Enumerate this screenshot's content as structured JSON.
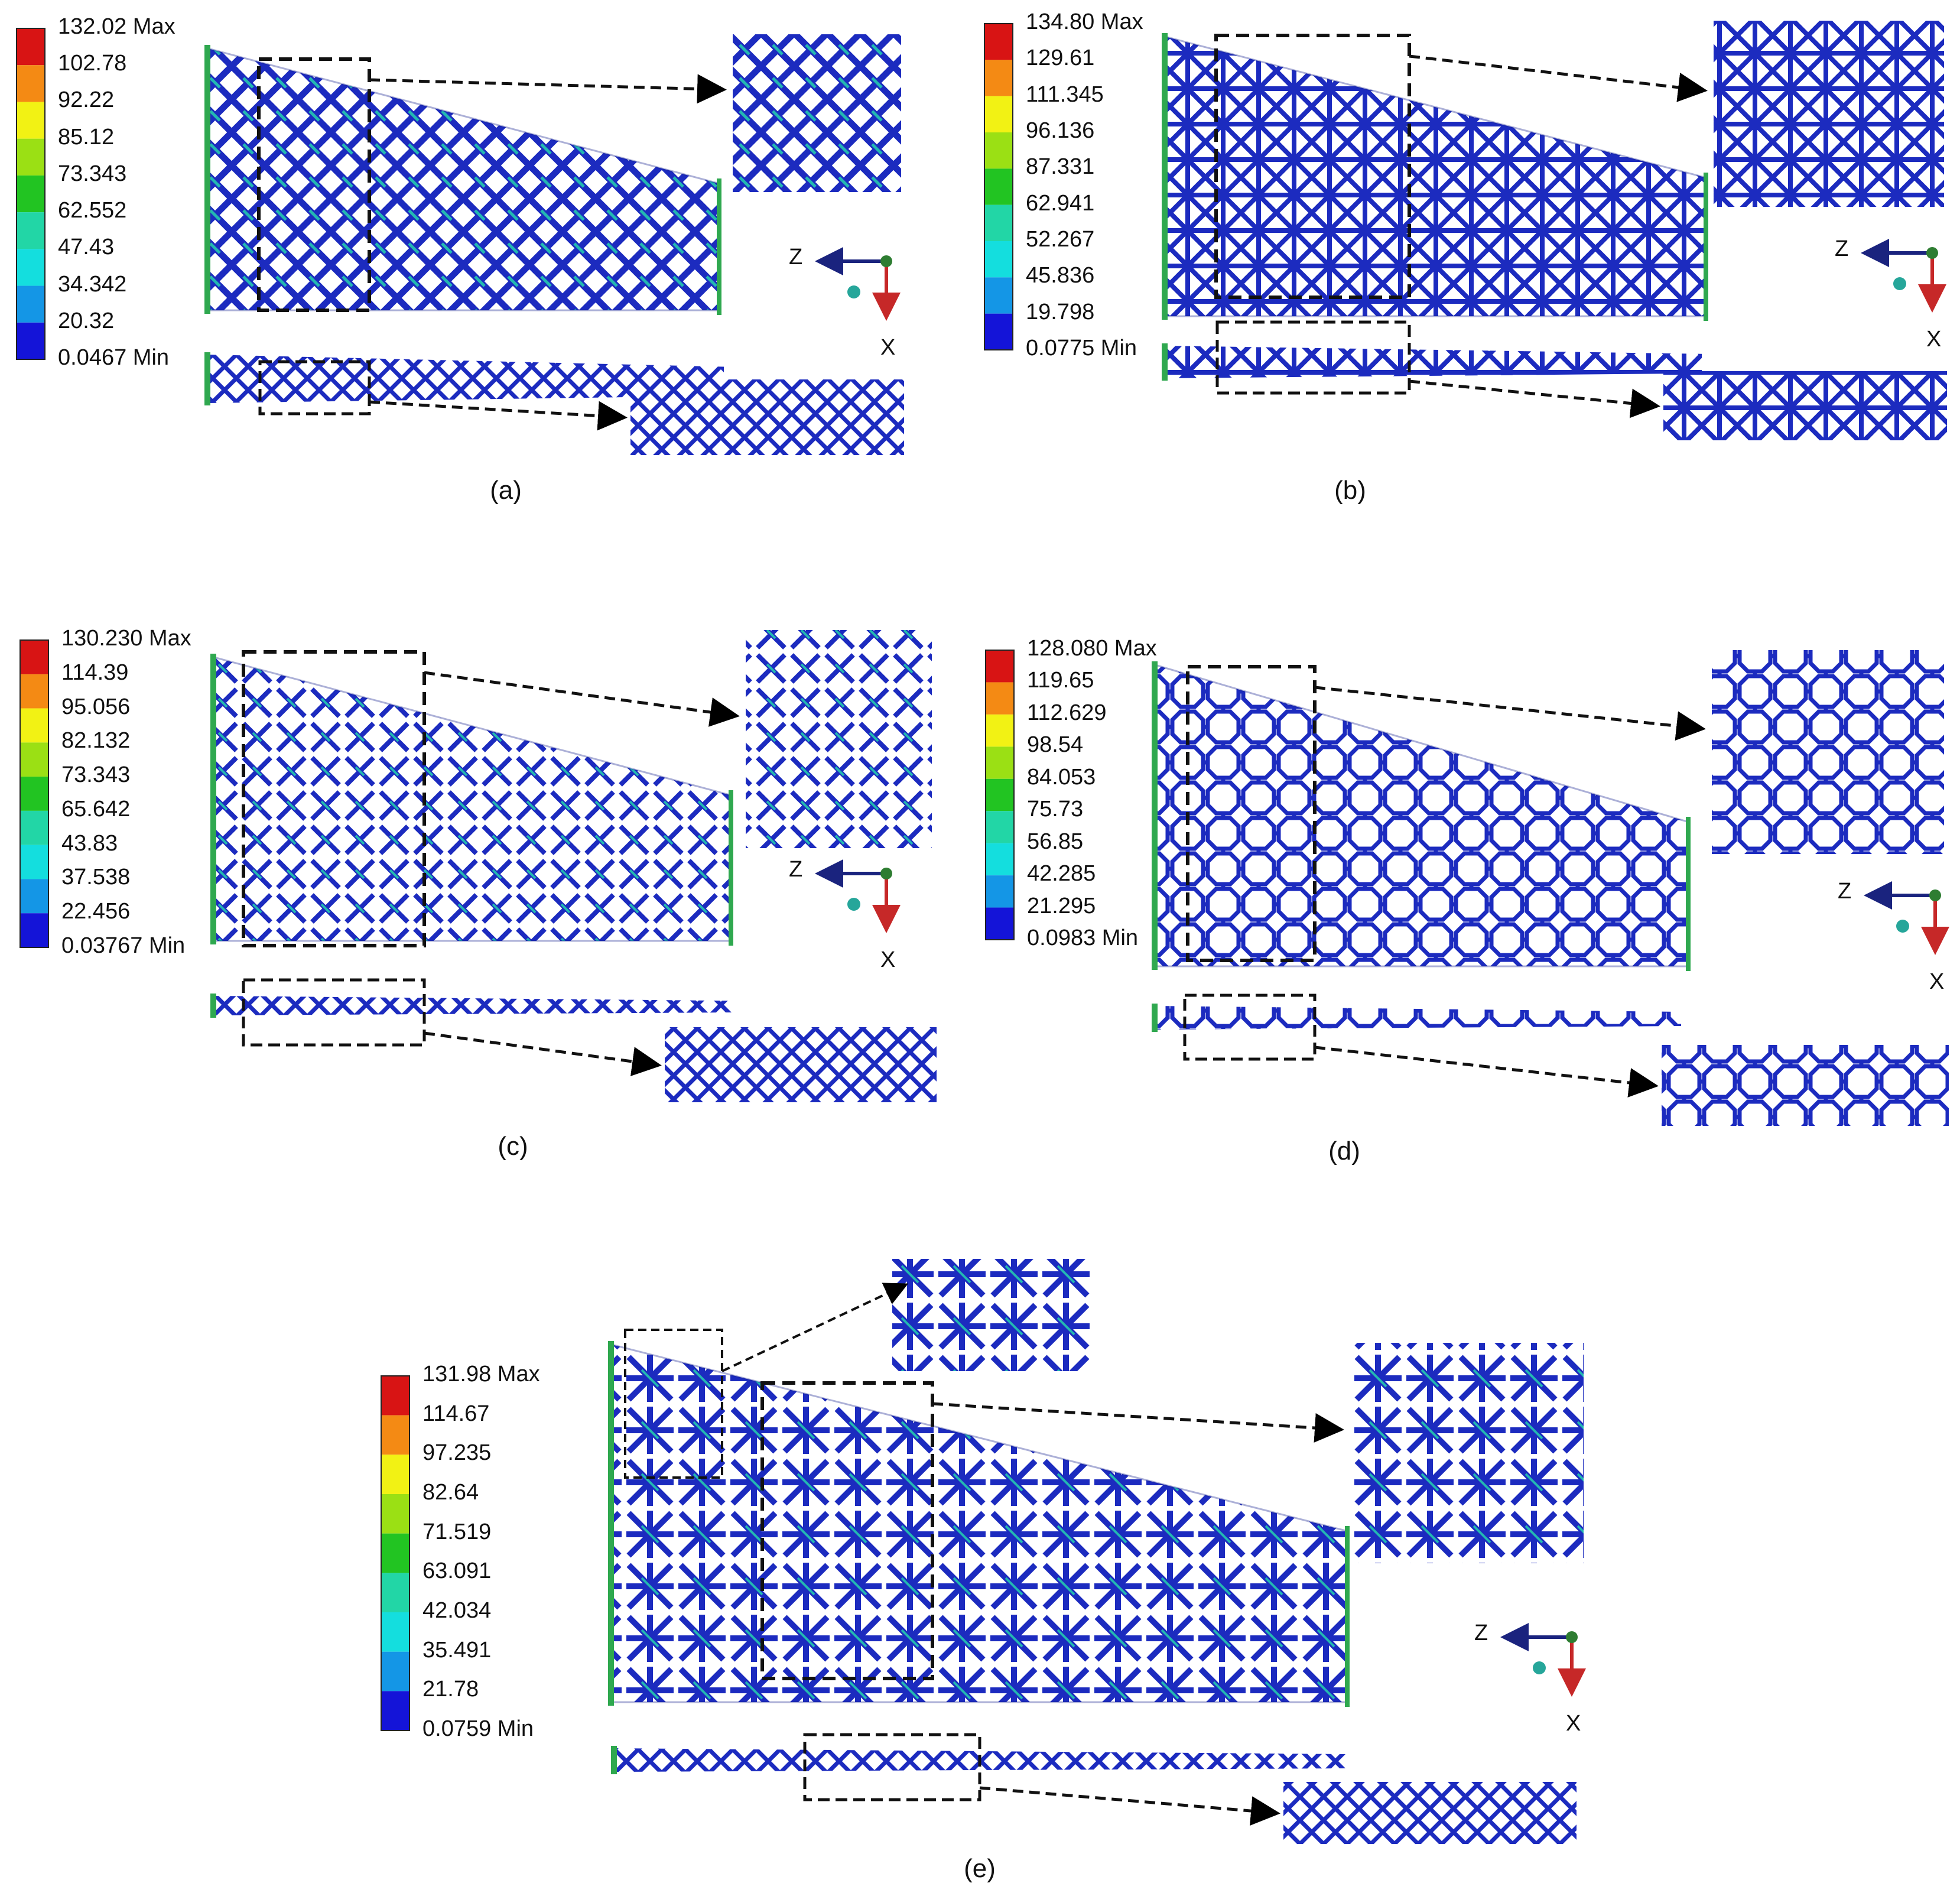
{
  "panels": [
    {
      "caption": "(a)",
      "legend": [
        "132.02 Max",
        "102.78",
        "92.22",
        "85.12",
        "73.343",
        "62.552",
        "47.43",
        "34.342",
        "20.32",
        "0.0467  Min"
      ],
      "pattern": "diamond",
      "bottom_pattern": "x-lattice"
    },
    {
      "caption": "(b)",
      "legend": [
        "134.80 Max",
        "129.61",
        "111.345",
        "96.136",
        "87.331",
        "62.941",
        "52.267",
        "45.836",
        "19.798",
        "0.0775 Min"
      ],
      "pattern": "star",
      "bottom_pattern": "star-strip"
    },
    {
      "caption": "(c)",
      "legend": [
        "130.230 Max",
        "114.39",
        "95.056",
        "82.132",
        "73.343",
        "65.642",
        "43.83",
        "37.538",
        "22.456",
        "0.03767  Min"
      ],
      "pattern": "x-cross",
      "bottom_pattern": "x-lattice"
    },
    {
      "caption": "(d)",
      "legend": [
        "128.080 Max",
        "119.65",
        "112.629",
        "98.54",
        "84.053",
        "75.73",
        "56.85",
        "42.285",
        "21.295",
        "0.0983 Min"
      ],
      "pattern": "octagon",
      "bottom_pattern": "octagon-strip"
    },
    {
      "caption": "(e)",
      "legend": [
        "131.98 Max",
        "114.67",
        "97.235",
        "82.64",
        "71.519",
        "63.091",
        "42.034",
        "35.491",
        "21.78",
        "0.0759  Min"
      ],
      "pattern": "star-x",
      "bottom_pattern": "x-lattice"
    }
  ],
  "axis_labels": {
    "z": "Z",
    "x": "X"
  },
  "colors": {
    "contour": [
      "#d81414",
      "#f48a14",
      "#f2f214",
      "#9be014",
      "#22c422",
      "#22d6a6",
      "#14dede",
      "#1496e6",
      "#1414d8"
    ],
    "strut": "#1c2bbf",
    "strut_dark": "#101c8c",
    "strut_stress": "#23b8b2",
    "clamp": "#2fa84f",
    "axis_z": "#1a237e",
    "axis_x": "#c62828",
    "axis_node": "#2e7d32",
    "axis_dot": "#26a69a"
  }
}
